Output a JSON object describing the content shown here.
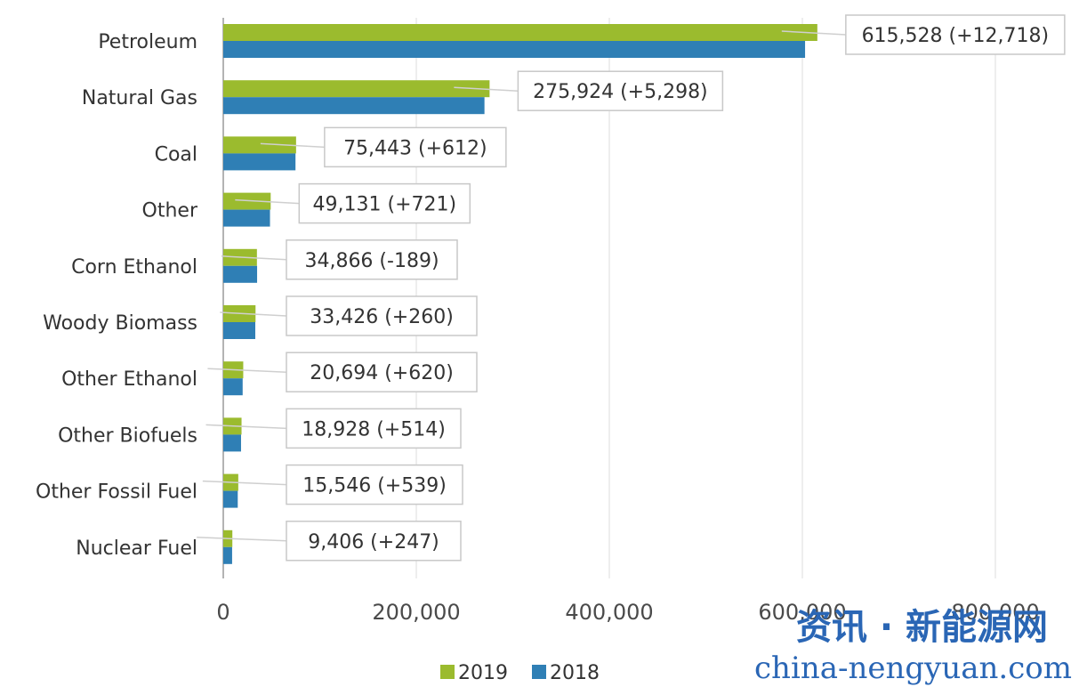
{
  "chart_data": {
    "type": "bar",
    "orientation": "horizontal",
    "categories": [
      "Petroleum",
      "Natural Gas",
      "Coal",
      "Other",
      "Corn Ethanol",
      "Woody Biomass",
      "Other Ethanol",
      "Other Biofuels",
      "Other Fossil Fuel",
      "Nuclear Fuel"
    ],
    "series": [
      {
        "name": "2019",
        "color": "#9bbb2e",
        "values": [
          615528,
          275924,
          75443,
          49131,
          34866,
          33426,
          20694,
          18928,
          15546,
          9406
        ]
      },
      {
        "name": "2018",
        "color": "#2f7fb5",
        "values": [
          602810,
          270626,
          74831,
          48410,
          35055,
          33166,
          20074,
          18414,
          15007,
          9159
        ]
      }
    ],
    "data_labels": [
      "615,528 (+12,718)",
      "275,924 (+5,298)",
      "75,443 (+612)",
      "49,131 (+721)",
      "34,866 (-189)",
      "33,426 (+260)",
      "20,694 (+620)",
      "18,928 (+514)",
      "15,546 (+539)",
      "9,406 (+247)"
    ],
    "x_ticks": [
      "0",
      "200,000",
      "400,000",
      "600,000",
      "800,000"
    ],
    "xlim": [
      0,
      880000
    ],
    "grid": true,
    "legend_position": "bottom",
    "title": "",
    "xlabel": "",
    "ylabel": ""
  },
  "watermark": {
    "line1": "资讯 · 新能源网",
    "line2": "china-nengyuan.com"
  }
}
